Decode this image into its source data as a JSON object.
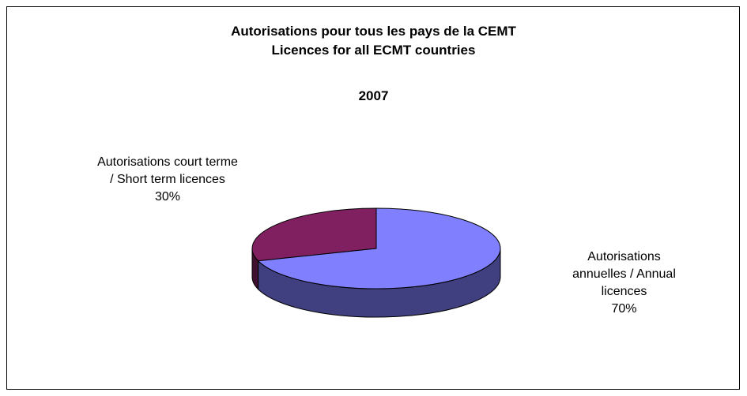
{
  "chart_data": {
    "type": "pie3d",
    "title": "Autorisations pour tous les pays de la CEMT\nLicences for all ECMT countries",
    "subtitle": "2007",
    "categories": [
      "Autorisations court terme / Short term licences",
      "Autorisations annuelles / Annual licences"
    ],
    "values": [
      30,
      70
    ],
    "value_labels": [
      "30%",
      "70%"
    ],
    "colors": [
      "#802060",
      "#8080ff"
    ]
  }
}
